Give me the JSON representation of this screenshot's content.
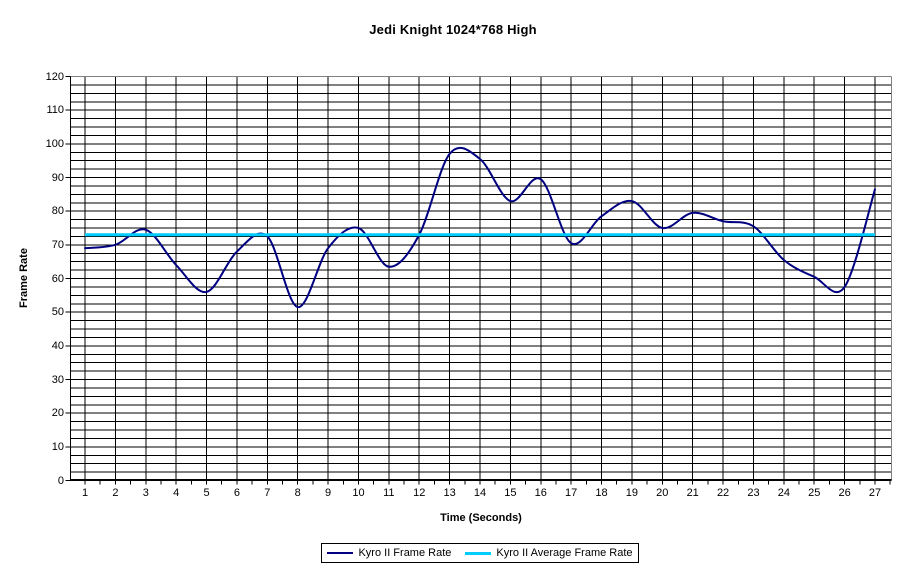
{
  "page": {
    "title": "Jedi Knight 1024*768 High"
  },
  "colors": {
    "frame_rate_line": "#000080",
    "average_line": "#00CCFF",
    "gridline": "#000000",
    "axis": "#000000",
    "plot_border": "#808080",
    "background": "#FFFFFF"
  },
  "chart_data": {
    "type": "line",
    "title": "Jedi Knight 1024*768 High",
    "xlabel": "Time (Seconds)",
    "ylabel": "Frame Rate",
    "x": [
      1,
      2,
      3,
      4,
      5,
      6,
      7,
      8,
      9,
      10,
      11,
      12,
      13,
      14,
      15,
      16,
      17,
      18,
      19,
      20,
      21,
      22,
      23,
      24,
      25,
      26,
      27
    ],
    "y_ticks": [
      0,
      10,
      20,
      30,
      40,
      50,
      60,
      70,
      80,
      90,
      100,
      110,
      120
    ],
    "ylim": [
      0,
      120
    ],
    "y_major_step": 10,
    "y_minor_step": 2.5,
    "grid": true,
    "smooth": true,
    "legend_position": "bottom",
    "series": [
      {
        "name": "Kyro II Frame Rate",
        "color": "#000080",
        "values": [
          69,
          70,
          74.5,
          64,
          56,
          68,
          72.5,
          51.5,
          69,
          75,
          63.5,
          73,
          97,
          95.5,
          83,
          89.5,
          70.5,
          78.5,
          83,
          75,
          79.5,
          77,
          75.5,
          65.5,
          60.5,
          57.5,
          86.5
        ]
      },
      {
        "name": "Kyro II Average Frame Rate",
        "color": "#00CCFF",
        "constant_value": 73
      }
    ]
  },
  "legend": {
    "items": [
      {
        "label": "Kyro II Frame Rate"
      },
      {
        "label": "Kyro II Average Frame Rate"
      }
    ]
  }
}
